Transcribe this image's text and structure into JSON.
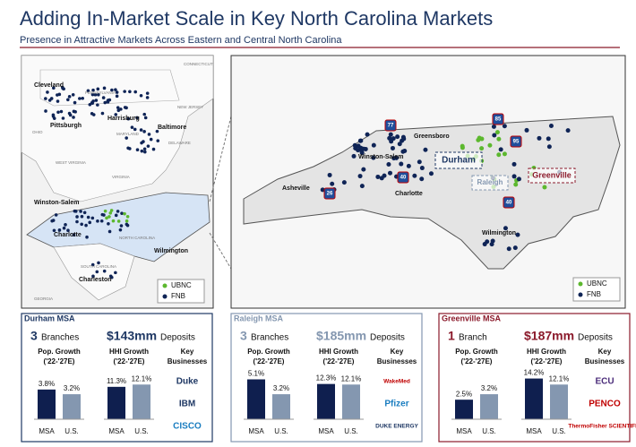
{
  "header": {
    "title": "Adding In-Market Scale in Key North Carolina Markets",
    "subtitle": "Presence in Attractive Markets Across Eastern and Central North Carolina"
  },
  "left_map": {
    "cities": [
      "Cleveland",
      "Pittsburgh",
      "Harrisburg",
      "Baltimore",
      "Winston-Salem",
      "Charlotte",
      "Wilmington",
      "Charleston"
    ],
    "states": [
      "CONNECTICUT",
      "PENNSYLVANIA",
      "NEW JERSEY",
      "OHIO",
      "MARYLAND",
      "DELAWARE",
      "WEST VIRGINIA",
      "VIRGINIA",
      "NORTH CAROLINA",
      "SOUTH CAROLINA",
      "GEORGIA"
    ],
    "legend": [
      "UBNC",
      "FNB"
    ]
  },
  "right_map": {
    "cities": [
      "Greensboro",
      "Winston-Salem",
      "Asheville",
      "Charlotte",
      "Wilmington"
    ],
    "highways": [
      "77",
      "85",
      "95",
      "40",
      "26",
      "40"
    ],
    "markets": [
      "Durham",
      "Raleigh",
      "Greenville"
    ],
    "legend": [
      "UBNC",
      "FNB"
    ]
  },
  "legend_colors": [
    "#5cb82e",
    "#0f2456"
  ],
  "panels": [
    {
      "title": "Durham MSA",
      "color": "#1f3864",
      "branches": 3,
      "branch_label": "Branches",
      "deposits": "$143mm",
      "deposits_label": "Deposits",
      "charts": [
        {
          "type": "bar",
          "title": [
            "Pop. Growth",
            "('22-'27E)"
          ],
          "categories": [
            "MSA",
            "U.S."
          ],
          "values": [
            3.8,
            3.2
          ],
          "value_labels": [
            "3.8%",
            "3.2%"
          ],
          "colors": [
            "#0f1f4f",
            "#8497b0"
          ],
          "ylim": [
            0,
            5.5
          ]
        },
        {
          "type": "bar",
          "title": [
            "HHI Growth",
            "('22-'27E)"
          ],
          "categories": [
            "MSA",
            "U.S."
          ],
          "values": [
            11.3,
            12.1
          ],
          "value_labels": [
            "11.3%",
            "12.1%"
          ],
          "colors": [
            "#0f1f4f",
            "#8497b0"
          ],
          "ylim": [
            0,
            15
          ]
        }
      ],
      "businesses_title": [
        "Key",
        "Businesses"
      ],
      "businesses": [
        "Duke",
        "IBM",
        "CISCO"
      ]
    },
    {
      "title": "Raleigh MSA",
      "color": "#8497b0",
      "branches": 3,
      "branch_label": "Branches",
      "deposits": "$185mm",
      "deposits_label": "Deposits",
      "charts": [
        {
          "type": "bar",
          "title": [
            "Pop. Growth",
            "('22-'27E)"
          ],
          "categories": [
            "MSA",
            "U.S."
          ],
          "values": [
            5.1,
            3.2
          ],
          "value_labels": [
            "5.1%",
            "3.2%"
          ],
          "colors": [
            "#0f1f4f",
            "#8497b0"
          ],
          "ylim": [
            0,
            5.5
          ]
        },
        {
          "type": "bar",
          "title": [
            "HHI Growth",
            "('22-'27E)"
          ],
          "categories": [
            "MSA",
            "U.S."
          ],
          "values": [
            12.3,
            12.1
          ],
          "value_labels": [
            "12.3%",
            "12.1%"
          ],
          "colors": [
            "#0f1f4f",
            "#8497b0"
          ],
          "ylim": [
            0,
            15
          ]
        }
      ],
      "businesses_title": [
        "Key",
        "Businesses"
      ],
      "businesses": [
        "WakeMed",
        "Pfizer",
        "DUKE ENERGY"
      ]
    },
    {
      "title": "Greenville MSA",
      "color": "#8b1a2b",
      "branches": 1,
      "branch_label": "Branch",
      "deposits": "$187mm",
      "deposits_label": "Deposits",
      "charts": [
        {
          "type": "bar",
          "title": [
            "Pop. Growth",
            "('22-'27E)"
          ],
          "categories": [
            "MSA",
            "U.S."
          ],
          "values": [
            2.5,
            3.2
          ],
          "value_labels": [
            "2.5%",
            "3.2%"
          ],
          "colors": [
            "#0f1f4f",
            "#8497b0"
          ],
          "ylim": [
            0,
            5.5
          ]
        },
        {
          "type": "bar",
          "title": [
            "HHI Growth",
            "('22-'27E)"
          ],
          "categories": [
            "MSA",
            "U.S."
          ],
          "values": [
            14.2,
            12.1
          ],
          "value_labels": [
            "14.2%",
            "12.1%"
          ],
          "colors": [
            "#0f1f4f",
            "#8497b0"
          ],
          "ylim": [
            0,
            15
          ]
        }
      ],
      "businesses_title": [
        "Key",
        "Businesses"
      ],
      "businesses": [
        "ECU",
        "PENCO",
        "ThermoFisher SCIENTIFIC"
      ]
    }
  ]
}
